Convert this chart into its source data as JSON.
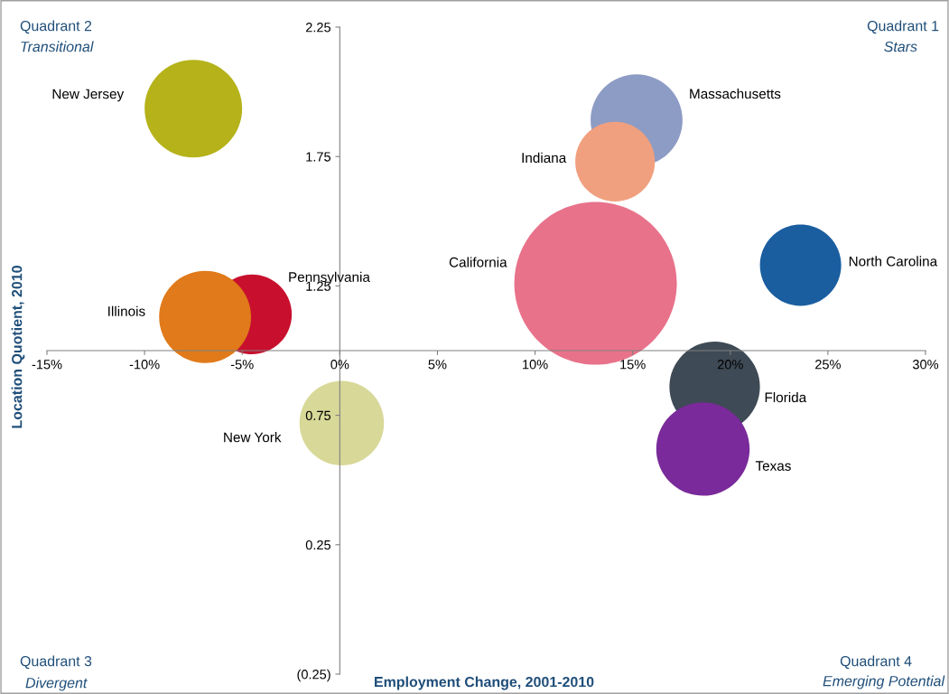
{
  "chart_data": {
    "type": "bubble",
    "xlabel": "Employment Change, 2001-2010",
    "ylabel": "Location Quotient, 2010",
    "series": [
      {
        "name": "New Jersey",
        "color": "#b5b21a",
        "x": [
          -7.5
        ],
        "values": [
          1.935
        ],
        "sizes": [
          0.36
        ]
      },
      {
        "name": "Massachusetts",
        "color": "#8d9cc4",
        "x": [
          15.2
        ],
        "values": [
          1.89
        ],
        "sizes": [
          0.32
        ]
      },
      {
        "name": "Indiana",
        "color": "#f0a07e",
        "x": [
          14.1
        ],
        "values": [
          1.73
        ],
        "sizes": [
          0.24
        ]
      },
      {
        "name": "California",
        "color": "#e8728a",
        "x": [
          13.1
        ],
        "values": [
          1.26
        ],
        "sizes": [
          1
        ]
      },
      {
        "name": "North Carolina",
        "color": "#1a5ea0",
        "x": [
          23.6
        ],
        "values": [
          1.33
        ],
        "sizes": [
          0.25
        ]
      },
      {
        "name": "Pennsylvania",
        "color": "#c8102e",
        "x": [
          -4.5
        ],
        "values": [
          1.14
        ],
        "sizes": [
          0.24
        ]
      },
      {
        "name": "Illinois",
        "color": "#e07a1a",
        "x": [
          -6.9
        ],
        "values": [
          1.13
        ],
        "sizes": [
          0.32
        ]
      },
      {
        "name": "New York",
        "color": "#d8d898",
        "x": [
          0.1
        ],
        "values": [
          0.72
        ],
        "sizes": [
          0.27
        ]
      },
      {
        "name": "Florida",
        "color": "#3e4a55",
        "x": [
          19.2
        ],
        "values": [
          0.86
        ],
        "sizes": [
          0.31
        ]
      },
      {
        "name": "Texas",
        "color": "#7a2a9a",
        "x": [
          18.6
        ],
        "values": [
          0.62
        ],
        "sizes": [
          0.33
        ]
      }
    ],
    "xlim": [
      -15,
      30
    ],
    "ylim": [
      -0.25,
      2.25
    ],
    "xticks": [
      {
        "value": -15,
        "label": "-15%"
      },
      {
        "value": -10,
        "label": "-10%"
      },
      {
        "value": -5,
        "label": "-5%"
      },
      {
        "value": 0,
        "label": "0%"
      },
      {
        "value": 5,
        "label": "5%"
      },
      {
        "value": 10,
        "label": "10%"
      },
      {
        "value": 15,
        "label": "15%"
      },
      {
        "value": 20,
        "label": "20%"
      },
      {
        "value": 25,
        "label": "25%"
      },
      {
        "value": 30,
        "label": "30%"
      }
    ],
    "yticks": [
      {
        "value": -0.25,
        "label": "(0.25)"
      },
      0.25,
      0.75,
      1.25,
      1.75,
      2.25
    ],
    "annotations": [
      "Quadrant 1",
      "Stars",
      "Quadrant 2",
      "Transitional",
      "Quadrant 3",
      "Divergent",
      "Quadrant 4",
      "Emerging Potential"
    ],
    "legend": false,
    "grid": false
  }
}
